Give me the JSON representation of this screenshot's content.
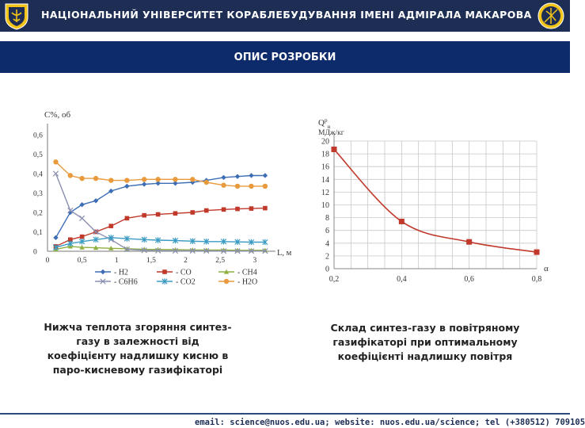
{
  "header": {
    "title": "НАЦІОНАЛЬНИЙ УНІВЕРСИТЕТ КОРАБЛЕБУДУВАННЯ ІМЕНІ АДМІРАЛА МАКАРОВА"
  },
  "banner": {
    "title": "ОПИС РОЗРОБКИ"
  },
  "captions": {
    "left": "Нижча теплота згоряння синтез-газу в залежності від коефіцієнту надлишку кисню в паро-кисневому газифікаторі",
    "right": "Склад синтез-газу в повітряному газифікаторі при оптимальному коефіцієнті надлишку повітря"
  },
  "footer": {
    "text": "email: science@nuos.edu.ua; website: nuos.edu.ua/science; tel (+380512) 709105"
  },
  "chart_data": [
    {
      "type": "line",
      "ylabel": "C%, об",
      "xlabel": "L, м",
      "xlim": [
        0,
        3.3
      ],
      "ylim": [
        0,
        0.6
      ],
      "xticks": [
        0,
        0.5,
        1,
        1.5,
        2,
        2.5,
        3
      ],
      "xtick_labels": [
        "0",
        "0,5",
        "1",
        "1,5",
        "2",
        "2,5",
        "3"
      ],
      "yticks": [
        0,
        0.1,
        0.2,
        0.3,
        0.4,
        0.5,
        0.6
      ],
      "ytick_labels": [
        "0",
        "0,1",
        "0,2",
        "0,3",
        "0,4",
        "0,5",
        "0,6"
      ],
      "grid": false,
      "legend_position": "bottom",
      "x": [
        0.12,
        0.33,
        0.5,
        0.7,
        0.92,
        1.15,
        1.4,
        1.6,
        1.85,
        2.1,
        2.3,
        2.55,
        2.75,
        2.95,
        3.15
      ],
      "series": [
        {
          "name": "- H2",
          "color": "#3d6eb5",
          "marker": "diamond",
          "values": [
            0.07,
            0.2,
            0.24,
            0.26,
            0.31,
            0.335,
            0.345,
            0.35,
            0.35,
            0.355,
            0.365,
            0.38,
            0.385,
            0.39,
            0.39
          ]
        },
        {
          "name": "- CO",
          "color": "#c0392b",
          "marker": "square",
          "values": [
            0.025,
            0.06,
            0.075,
            0.1,
            0.13,
            0.17,
            0.185,
            0.19,
            0.195,
            0.2,
            0.21,
            0.215,
            0.218,
            0.22,
            0.222
          ]
        },
        {
          "name": "- CH4",
          "color": "#8fb043",
          "marker": "triangle",
          "values": [
            0.01,
            0.025,
            0.02,
            0.018,
            0.015,
            0.013,
            0.01,
            0.009,
            0.008,
            0.007,
            0.006,
            0.006,
            0.005,
            0.005,
            0.005
          ]
        },
        {
          "name": "- C6H6",
          "color": "#8a8fb0",
          "marker": "x",
          "values": [
            0.4,
            0.21,
            0.17,
            0.1,
            0.06,
            0.01,
            0.005,
            0.003,
            0.002,
            0.002,
            0.002,
            0.001,
            0.001,
            0.001,
            0.001
          ]
        },
        {
          "name": "- CO2",
          "color": "#3a9bc4",
          "marker": "star",
          "values": [
            0.02,
            0.04,
            0.05,
            0.06,
            0.07,
            0.065,
            0.06,
            0.057,
            0.055,
            0.052,
            0.05,
            0.05,
            0.048,
            0.047,
            0.047
          ]
        },
        {
          "name": "- H2O",
          "color": "#e89a3c",
          "marker": "circle",
          "values": [
            0.46,
            0.39,
            0.375,
            0.375,
            0.365,
            0.365,
            0.37,
            0.37,
            0.37,
            0.37,
            0.355,
            0.34,
            0.335,
            0.335,
            0.335
          ]
        }
      ]
    },
    {
      "type": "line",
      "ylabel_main": "Q",
      "ylabel_sup": "р",
      "ylabel_sub": "н",
      "ylabel_unit": "МДж/кг",
      "xlabel": "α",
      "xlim": [
        0.2,
        0.8
      ],
      "ylim": [
        0,
        20
      ],
      "xticks": [
        0.2,
        0.4,
        0.6,
        0.8
      ],
      "xtick_labels": [
        "0,2",
        "0,4",
        "0,6",
        "0,8"
      ],
      "yticks": [
        0,
        2,
        4,
        6,
        8,
        10,
        12,
        14,
        16,
        18,
        20
      ],
      "ytick_labels": [
        "0",
        "2",
        "4",
        "6",
        "8",
        "10",
        "12",
        "14",
        "16",
        "18",
        "20"
      ],
      "grid": true,
      "color": "#c0392b",
      "points": [
        [
          0.2,
          18.7
        ],
        [
          0.4,
          7.4
        ],
        [
          0.6,
          4.2
        ],
        [
          0.8,
          2.6
        ]
      ]
    }
  ]
}
